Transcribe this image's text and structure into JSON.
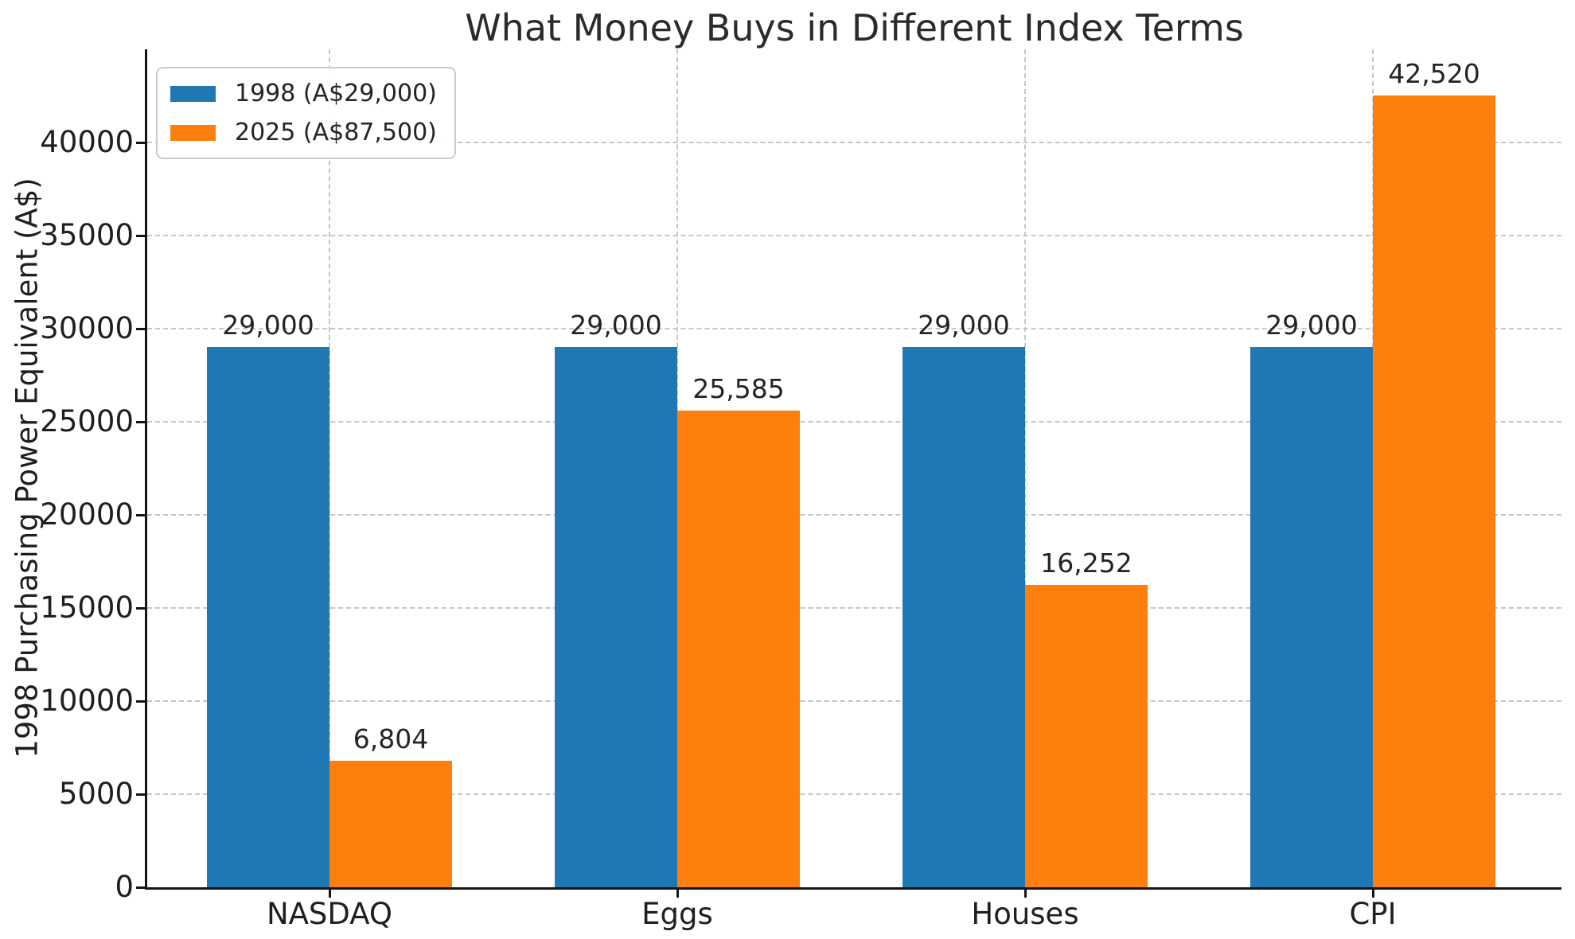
{
  "title": "What Money Buys in Different Index Terms",
  "colors": {
    "series_1998": "#1f77b4",
    "series_2025": "#ff7f0e",
    "grid": "#c7c7c7",
    "spine": "#141414",
    "text": "#1f1f1f"
  },
  "chart_data": {
    "type": "bar",
    "title": "What Money Buys in Different Index Terms",
    "xlabel": "",
    "ylabel": "1998 Purchasing Power Equivalent (A$)",
    "categories": [
      "NASDAQ",
      "Eggs",
      "Houses",
      "CPI"
    ],
    "series": [
      {
        "name": "1998 (A$29,000)",
        "color": "#1f77b4",
        "values": [
          29000,
          29000,
          29000,
          29000
        ],
        "value_labels": [
          "29,000",
          "29,000",
          "29,000",
          "29,000"
        ]
      },
      {
        "name": "2025 (A$87,500)",
        "color": "#ff7f0e",
        "values": [
          6804,
          25585,
          16252,
          42520
        ],
        "value_labels": [
          "6,804",
          "25,585",
          "16,252",
          "42,520"
        ]
      }
    ],
    "ylim": [
      0,
      45000
    ],
    "yticks": [
      0,
      5000,
      10000,
      15000,
      20000,
      25000,
      30000,
      35000,
      40000
    ],
    "ytick_labels": [
      "0",
      "5000",
      "10000",
      "15000",
      "20000",
      "25000",
      "30000",
      "35000",
      "40000"
    ],
    "grid": "both, dashed",
    "legend_position": "upper left"
  }
}
